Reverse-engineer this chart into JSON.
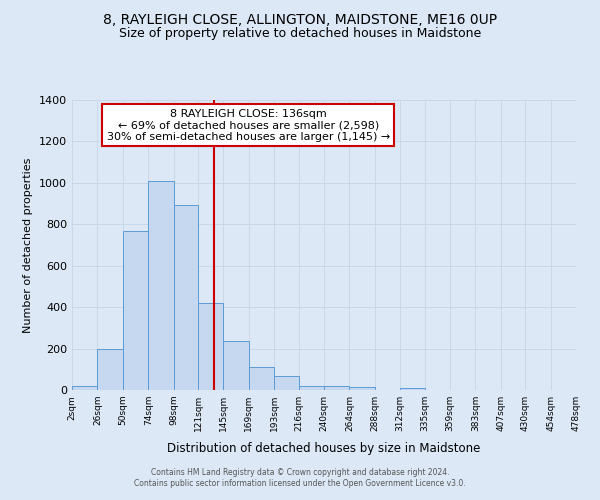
{
  "title": "8, RAYLEIGH CLOSE, ALLINGTON, MAIDSTONE, ME16 0UP",
  "subtitle": "Size of property relative to detached houses in Maidstone",
  "xlabel": "Distribution of detached houses by size in Maidstone",
  "ylabel": "Number of detached properties",
  "footer_line1": "Contains HM Land Registry data © Crown copyright and database right 2024.",
  "footer_line2": "Contains public sector information licensed under the Open Government Licence v3.0.",
  "bar_edges": [
    2,
    26,
    50,
    74,
    98,
    121,
    145,
    169,
    193,
    216,
    240,
    264,
    288,
    312,
    335,
    359,
    383,
    407,
    430,
    454,
    478
  ],
  "bar_heights": [
    20,
    200,
    770,
    1010,
    895,
    420,
    235,
    110,
    70,
    20,
    20,
    15,
    0,
    10,
    0,
    0,
    0,
    0,
    0,
    0
  ],
  "bar_color": "#c5d8f0",
  "bar_edgecolor": "#5b9bd5",
  "vline_x": 136,
  "vline_color": "#cc0000",
  "annotation_line1": "8 RAYLEIGH CLOSE: 136sqm",
  "annotation_line2": "← 69% of detached houses are smaller (2,598)",
  "annotation_line3": "30% of semi-detached houses are larger (1,145) →",
  "annotation_box_edgecolor": "#cc0000",
  "annotation_box_facecolor": "#ffffff",
  "ylim": [
    0,
    1400
  ],
  "yticks": [
    0,
    200,
    400,
    600,
    800,
    1000,
    1200,
    1400
  ],
  "xtick_labels": [
    "2sqm",
    "26sqm",
    "50sqm",
    "74sqm",
    "98sqm",
    "121sqm",
    "145sqm",
    "169sqm",
    "193sqm",
    "216sqm",
    "240sqm",
    "264sqm",
    "288sqm",
    "312sqm",
    "335sqm",
    "359sqm",
    "383sqm",
    "407sqm",
    "430sqm",
    "454sqm",
    "478sqm"
  ],
  "grid_color": "#c8d8e8",
  "bg_color": "#dce8f5",
  "title_fontsize": 10,
  "subtitle_fontsize": 9,
  "annotation_fontsize": 8
}
